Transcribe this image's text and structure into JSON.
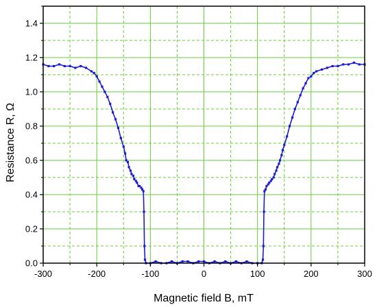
{
  "chart_data": {
    "type": "scatter",
    "title": "",
    "xlabel": "Magnetic field B, mT",
    "ylabel": "Resistance R, Ω",
    "xlim": [
      -300,
      300
    ],
    "ylim": [
      0.0,
      1.5
    ],
    "xticks": [
      -300,
      -200,
      -100,
      0,
      100,
      200,
      300
    ],
    "xtick_labels": [
      "-300",
      "-200",
      "-100",
      "0",
      "100",
      "200",
      "300"
    ],
    "yticks": [
      0.0,
      0.2,
      0.4,
      0.6,
      0.8,
      1.0,
      1.2,
      1.4
    ],
    "ytick_labels": [
      "0.0",
      "0.2",
      "0.4",
      "0.6",
      "0.8",
      "1.0",
      "1.2",
      "1.4"
    ],
    "grid": true,
    "grid_color": "#66cc33",
    "series_color": "#1a1ad6",
    "legend": "none",
    "series": [
      {
        "marker": "square",
        "line": true,
        "x": [
          -300,
          -290,
          -280,
          -270,
          -260,
          -250,
          -240,
          -230,
          -220,
          -210,
          -205,
          -200,
          -195,
          -190,
          -185,
          -180,
          -175,
          -170,
          -165,
          -160,
          -155,
          -150,
          -147,
          -145,
          -142,
          -140,
          -137,
          -135,
          -132,
          -130,
          -127,
          -125,
          -122,
          -120,
          -117,
          -115,
          -113,
          -112,
          -111,
          -110,
          -108,
          -100,
          -90,
          -80,
          -70,
          -60,
          -50,
          -40,
          -30,
          -20,
          -10,
          0,
          10,
          20,
          30,
          40,
          50,
          60,
          70,
          80,
          90,
          100,
          108,
          110,
          111,
          112,
          113,
          115,
          117,
          120,
          122,
          125,
          127,
          130,
          132,
          135,
          137,
          140,
          142,
          145,
          147,
          150,
          155,
          160,
          165,
          170,
          175,
          180,
          185,
          190,
          195,
          200,
          205,
          210,
          220,
          230,
          240,
          250,
          260,
          270,
          280,
          290,
          300
        ],
        "y": [
          1.16,
          1.15,
          1.15,
          1.16,
          1.15,
          1.15,
          1.14,
          1.15,
          1.14,
          1.12,
          1.11,
          1.09,
          1.06,
          1.03,
          1.0,
          0.97,
          0.93,
          0.88,
          0.84,
          0.79,
          0.73,
          0.68,
          0.64,
          0.6,
          0.59,
          0.56,
          0.54,
          0.52,
          0.51,
          0.49,
          0.48,
          0.47,
          0.45,
          0.45,
          0.44,
          0.43,
          0.42,
          0.3,
          0.1,
          0.02,
          0.0,
          0.0,
          0.01,
          0.0,
          0.0,
          0.01,
          0.0,
          0.01,
          0.01,
          0.0,
          0.01,
          0.01,
          0.0,
          0.01,
          0.0,
          0.01,
          0.0,
          0.01,
          0.0,
          0.01,
          0.0,
          0.0,
          0.0,
          0.02,
          0.1,
          0.3,
          0.42,
          0.43,
          0.45,
          0.46,
          0.47,
          0.48,
          0.49,
          0.5,
          0.52,
          0.54,
          0.56,
          0.58,
          0.6,
          0.63,
          0.66,
          0.69,
          0.74,
          0.8,
          0.85,
          0.9,
          0.94,
          0.98,
          1.02,
          1.05,
          1.08,
          1.09,
          1.11,
          1.12,
          1.13,
          1.14,
          1.15,
          1.15,
          1.16,
          1.16,
          1.17,
          1.16,
          1.16
        ]
      }
    ]
  }
}
